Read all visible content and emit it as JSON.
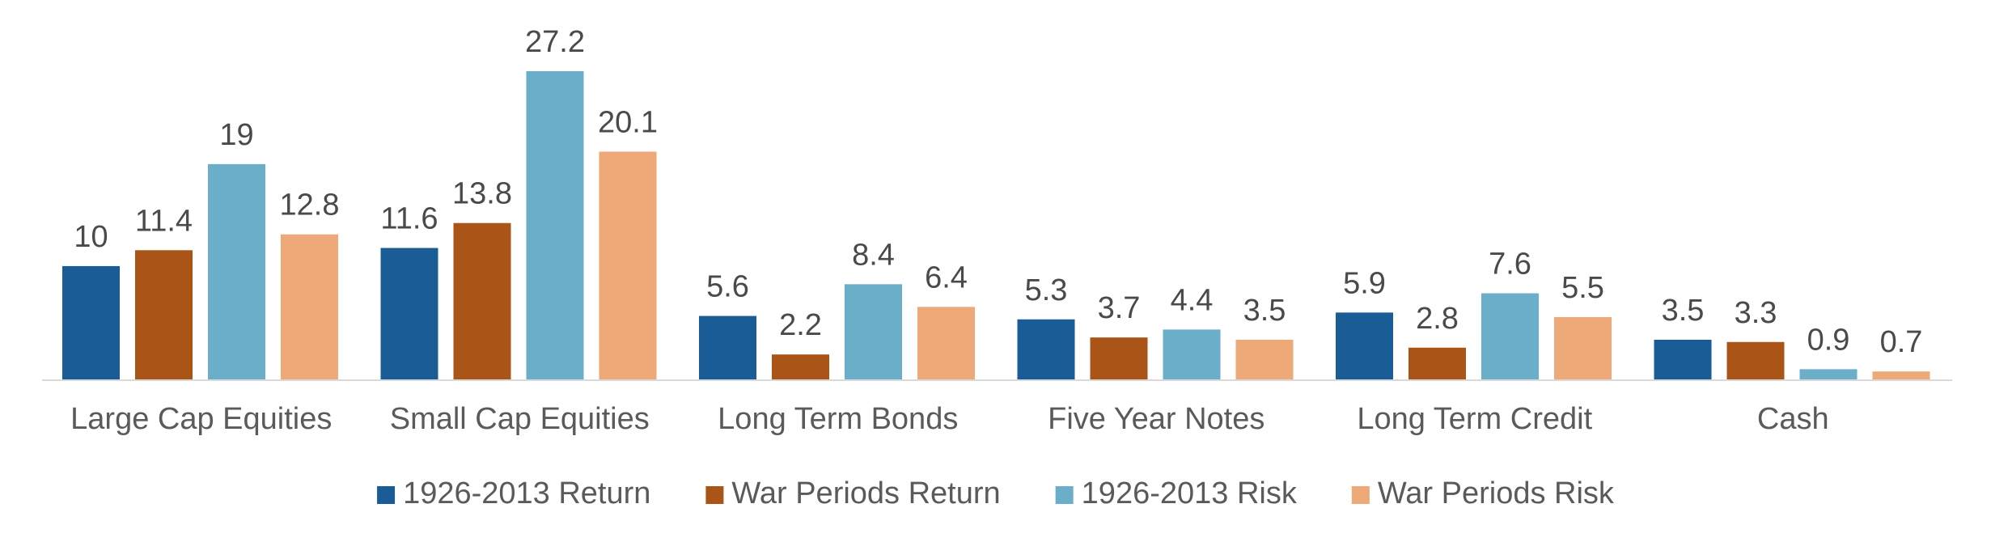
{
  "chart_data": {
    "type": "bar",
    "categories": [
      "Large Cap Equities",
      "Small Cap Equities",
      "Long Term Bonds",
      "Five Year Notes",
      "Long Term Credit",
      "Cash"
    ],
    "series": [
      {
        "name": "1926-2013 Return",
        "color": "#1a5c96",
        "values": [
          10,
          11.6,
          5.6,
          5.3,
          5.9,
          3.5
        ]
      },
      {
        "name": "War Periods Return",
        "color": "#ab5418",
        "values": [
          11.4,
          13.8,
          2.2,
          3.7,
          2.8,
          3.3
        ]
      },
      {
        "name": "1926-2013 Risk",
        "color": "#6aaec9",
        "values": [
          19,
          27.2,
          8.4,
          4.4,
          7.6,
          0.9
        ]
      },
      {
        "name": "War Periods Risk",
        "color": "#edaa78",
        "values": [
          12.8,
          20.1,
          6.4,
          3.5,
          5.5,
          0.7
        ]
      }
    ],
    "data_labels": [
      [
        "10",
        "11.6",
        "5.6",
        "5.3",
        "5.9",
        "3.5"
      ],
      [
        "11.4",
        "13.8",
        "2.2",
        "3.7",
        "2.8",
        "3.3"
      ],
      [
        "19",
        "27.2",
        "8.4",
        "4.4",
        "7.6",
        "0.9"
      ],
      [
        "12.8",
        "20.1",
        "6.4",
        "3.5",
        "5.5",
        "0.7"
      ]
    ],
    "title": "",
    "xlabel": "",
    "ylabel": "",
    "ylim": [
      0,
      27.2
    ],
    "y_axis_visible": false,
    "grid": false,
    "legend_position": "bottom",
    "axis_color": "#d9d9d9"
  }
}
